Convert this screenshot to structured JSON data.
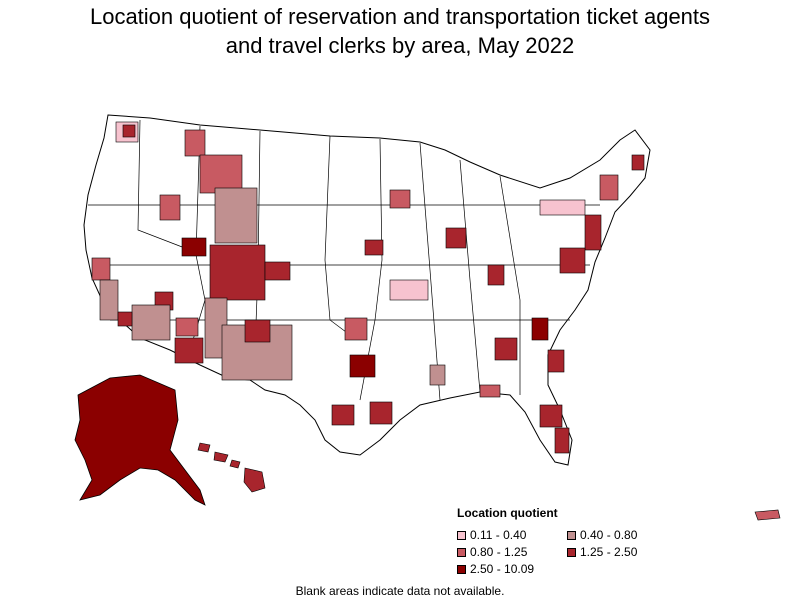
{
  "title_line1": "Location quotient of reservation and transportation ticket agents",
  "title_line2": "and travel clerks by area, May 2022",
  "legend": {
    "title": "Location quotient",
    "items": [
      {
        "label": "0.11 - 0.40",
        "color": "#f7c3cf"
      },
      {
        "label": "0.40 - 0.80",
        "color": "#c09090"
      },
      {
        "label": "0.80 - 1.25",
        "color": "#c85a62"
      },
      {
        "label": "1.25 - 2.50",
        "color": "#a8252d"
      },
      {
        "label": "2.50 - 10.09",
        "color": "#8b0000"
      }
    ]
  },
  "footnote": "Blank areas indicate data not available.",
  "colors": {
    "land": "#ffffff",
    "border": "#000000"
  }
}
